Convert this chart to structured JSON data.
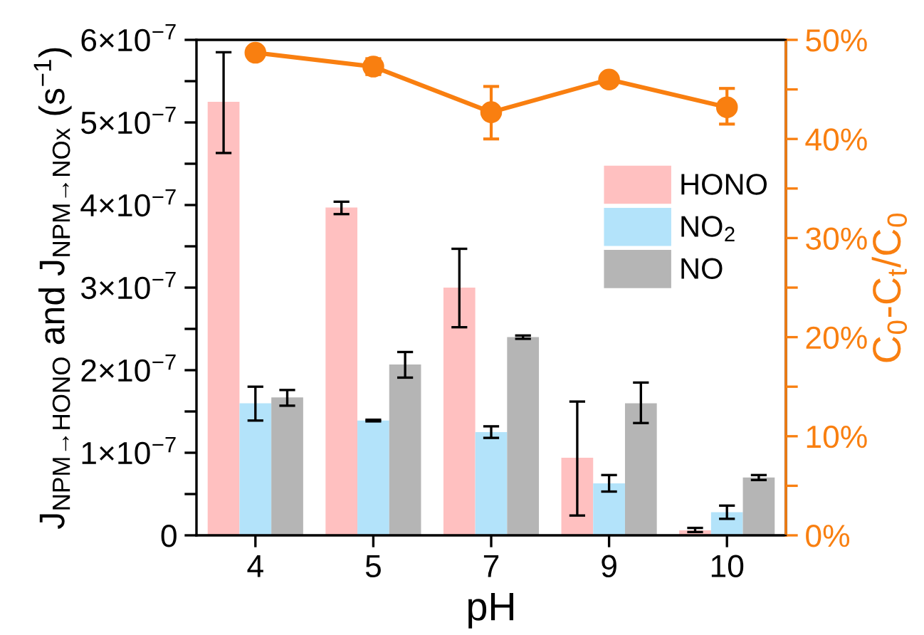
{
  "chart_data": {
    "type": "bar",
    "xlabel": "pH",
    "ylabel": "J$_{NPM→HONO}$ and J$_{NPM→NOx}$ (s$^{−1}$)",
    "y2label": "C$_{0}$-C$_{t}$/C$_{0}$",
    "categories": [
      "4",
      "5",
      "7",
      "9",
      "10"
    ],
    "series": [
      {
        "name": "HONO",
        "color": "#ffc0c0",
        "values": [
          5.25e-07,
          3.97e-07,
          3e-07,
          9.4e-08,
          6e-09
        ],
        "errors": [
          [
            4.63e-07,
            5.85e-07
          ],
          [
            3.89e-07,
            4.04e-07
          ],
          [
            2.52e-07,
            3.47e-07
          ],
          [
            2.4e-08,
            1.62e-07
          ],
          [
            4e-09,
            9e-09
          ]
        ]
      },
      {
        "name": "NO$_{2}$",
        "color": "#b3e3fa",
        "values": [
          1.6e-07,
          1.39e-07,
          1.25e-07,
          6.3e-08,
          2.8e-08
        ],
        "errors": [
          [
            1.39e-07,
            1.8e-07
          ],
          [
            1.38e-07,
            1.4e-07
          ],
          [
            1.18e-07,
            1.32e-07
          ],
          [
            5.3e-08,
            7.3e-08
          ],
          [
            2e-08,
            3.6e-08
          ]
        ]
      },
      {
        "name": "NO",
        "color": "#b5b5b5",
        "values": [
          1.67e-07,
          2.07e-07,
          2.4e-07,
          1.6e-07,
          7e-08
        ],
        "errors": [
          [
            1.57e-07,
            1.76e-07
          ],
          [
            1.91e-07,
            2.22e-07
          ],
          [
            2.38e-07,
            2.42e-07
          ],
          [
            1.36e-07,
            1.85e-07
          ],
          [
            6.7e-08,
            7.3e-08
          ]
        ]
      },
      {
        "type": "line",
        "axis": "y2",
        "color": "#f97f10",
        "marker": "circle",
        "values": [
          48.7,
          47.3,
          42.7,
          46.0,
          43.2
        ],
        "errors": [
          null,
          [
            46.5,
            48.1
          ],
          [
            40.0,
            45.3
          ],
          null,
          [
            41.5,
            45.1
          ]
        ]
      }
    ],
    "ylim": [
      0,
      6e-07
    ],
    "yticks": [
      0,
      {
        "value": 5e-08,
        "label": null
      },
      {
        "value": 1e-07,
        "label": "1×10$^{−7}$"
      },
      {
        "value": 1.5e-07,
        "label": null
      },
      {
        "value": 2e-07,
        "label": "2×10$^{−7}$"
      },
      {
        "value": 2.5e-07,
        "label": null
      },
      {
        "value": 3e-07,
        "label": "3×10$^{−7}$"
      },
      {
        "value": 3.5e-07,
        "label": null
      },
      {
        "value": 4e-07,
        "label": "4×10$^{−7}$"
      },
      {
        "value": 4.5e-07,
        "label": null
      },
      {
        "value": 5e-07,
        "label": "5×10$^{−7}$"
      },
      {
        "value": 5.5e-07,
        "label": null
      },
      {
        "value": 6e-07,
        "label": "6×10$^{−7}$"
      }
    ],
    "y2lim": [
      0,
      50
    ],
    "y2ticks": [
      {
        "value": 0,
        "label": "0%"
      },
      {
        "value": 5,
        "label": null
      },
      {
        "value": 10,
        "label": "10%"
      },
      {
        "value": 15,
        "label": null
      },
      {
        "value": 20,
        "label": "20%"
      },
      {
        "value": 25,
        "label": null
      },
      {
        "value": 30,
        "label": "30%"
      },
      {
        "value": 35,
        "label": null
      },
      {
        "value": 40,
        "label": "40%"
      },
      {
        "value": 45,
        "label": null
      },
      {
        "value": 50,
        "label": "50%"
      }
    ],
    "legend": "top right",
    "grid": false
  }
}
